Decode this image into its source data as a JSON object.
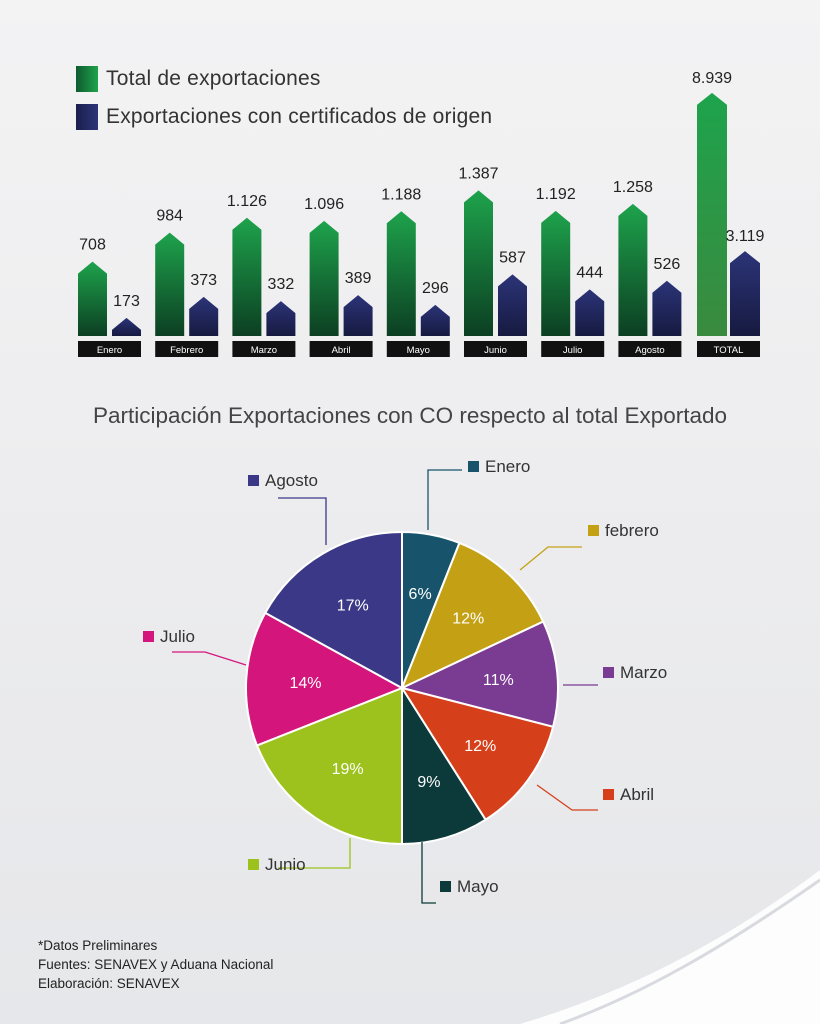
{
  "legend": {
    "total_label": "Total de exportaciones",
    "co_label": "Exportaciones con certificados de origen"
  },
  "pie_title": "Participación Exportaciones con CO respecto al total Exportado",
  "footer": {
    "line1": "*Datos Preliminares",
    "line2": "Fuentes: SENAVEX y Aduana Nacional",
    "line3": "Elaboración: SENAVEX"
  },
  "colors": {
    "green_dark": "#0f5a2e",
    "green_light": "#1ea34c",
    "navy_dark": "#1b1f4d",
    "navy_light": "#2c3478",
    "label_bg": "#111111"
  },
  "chart_data": [
    {
      "type": "bar",
      "categories": [
        "Enero",
        "Febrero",
        "Marzo",
        "Abril",
        "Mayo",
        "Junio",
        "Julio",
        "Agosto"
      ],
      "series": [
        {
          "name": "Total de exportaciones",
          "values": [
            708,
            984,
            1126,
            1096,
            1188,
            1387,
            1192,
            1258
          ],
          "labels": [
            "708",
            "984",
            "1.126",
            "1.096",
            "1.188",
            "1.387",
            "1.192",
            "1.258"
          ]
        },
        {
          "name": "Exportaciones con certificados de origen",
          "values": [
            173,
            373,
            332,
            389,
            296,
            587,
            444,
            526
          ],
          "labels": [
            "173",
            "373",
            "332",
            "389",
            "296",
            "587",
            "444",
            "526"
          ]
        }
      ],
      "total": {
        "category": "TOTAL",
        "values": [
          8939,
          3119
        ],
        "labels": [
          "8.939",
          "3.119"
        ]
      }
    },
    {
      "type": "pie",
      "title": "Participación Exportaciones con CO respecto al total Exportado",
      "slices": [
        {
          "label": "Enero",
          "value": 6,
          "display": "6%",
          "color": "#17546b"
        },
        {
          "label": "febrero",
          "value": 12,
          "display": "12%",
          "color": "#c4a114"
        },
        {
          "label": "Marzo",
          "value": 11,
          "display": "11%",
          "color": "#7a3b93"
        },
        {
          "label": "Abril",
          "value": 12,
          "display": "12%",
          "color": "#d5401b"
        },
        {
          "label": "Mayo",
          "value": 9,
          "display": "9%",
          "color": "#0c3a3a"
        },
        {
          "label": "Junio",
          "value": 19,
          "display": "19%",
          "color": "#9dc21e"
        },
        {
          "label": "Julio",
          "value": 14,
          "display": "14%",
          "color": "#d4167c"
        },
        {
          "label": "Agosto",
          "value": 17,
          "display": "17%",
          "color": "#3b3887"
        }
      ]
    }
  ]
}
